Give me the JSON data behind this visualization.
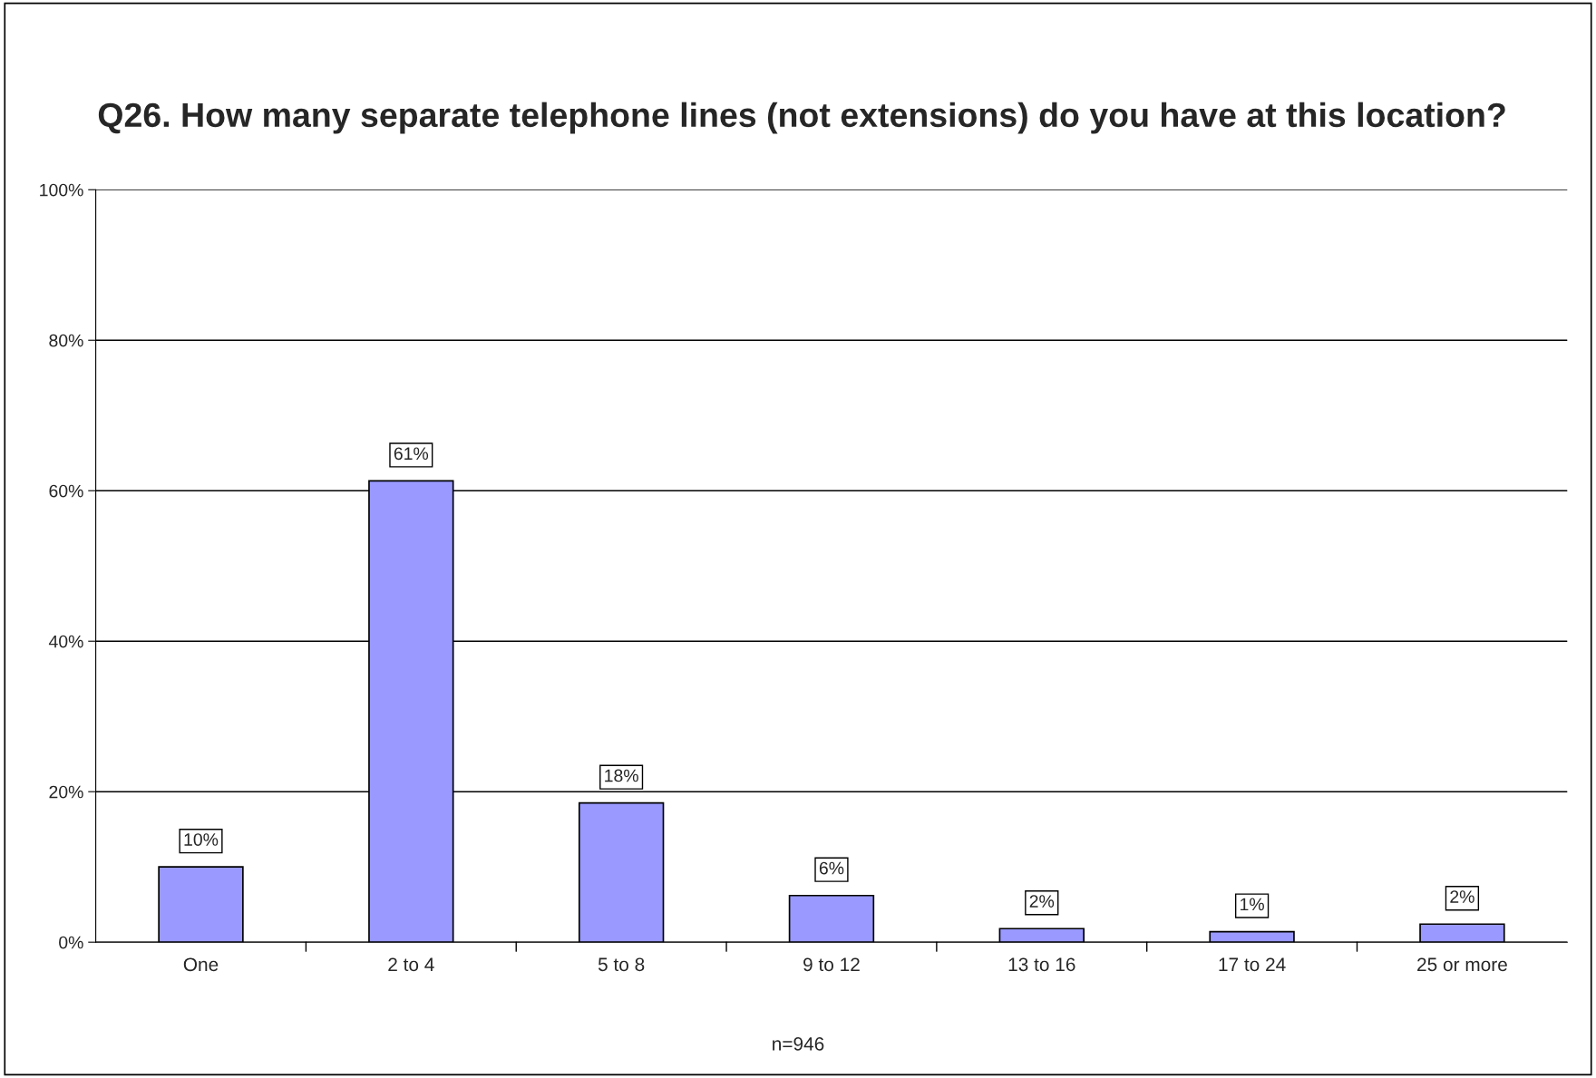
{
  "chart_data": {
    "type": "bar",
    "title": "Q26. How many separate telephone lines (not extensions) do you have at this location?",
    "categories": [
      "One",
      "2 to 4",
      "5 to 8",
      "9 to 12",
      "13 to 16",
      "17 to 24",
      "25 or more"
    ],
    "values": [
      10.0,
      61.3,
      18.5,
      6.2,
      1.8,
      1.4,
      2.4
    ],
    "value_labels": [
      "10%",
      "61%",
      "18%",
      "6%",
      "2%",
      "1%",
      "2%"
    ],
    "color": "#9999ff",
    "ylim": [
      0,
      100
    ],
    "yticks": [
      {
        "value": 0,
        "label": "0%"
      },
      {
        "value": 20,
        "label": "20%"
      },
      {
        "value": 40,
        "label": "40%"
      },
      {
        "value": 60,
        "label": "60%"
      },
      {
        "value": 80,
        "label": "80%"
      },
      {
        "value": 100,
        "label": "100%"
      }
    ],
    "grid": "y",
    "annotations": [
      "n=946"
    ]
  }
}
